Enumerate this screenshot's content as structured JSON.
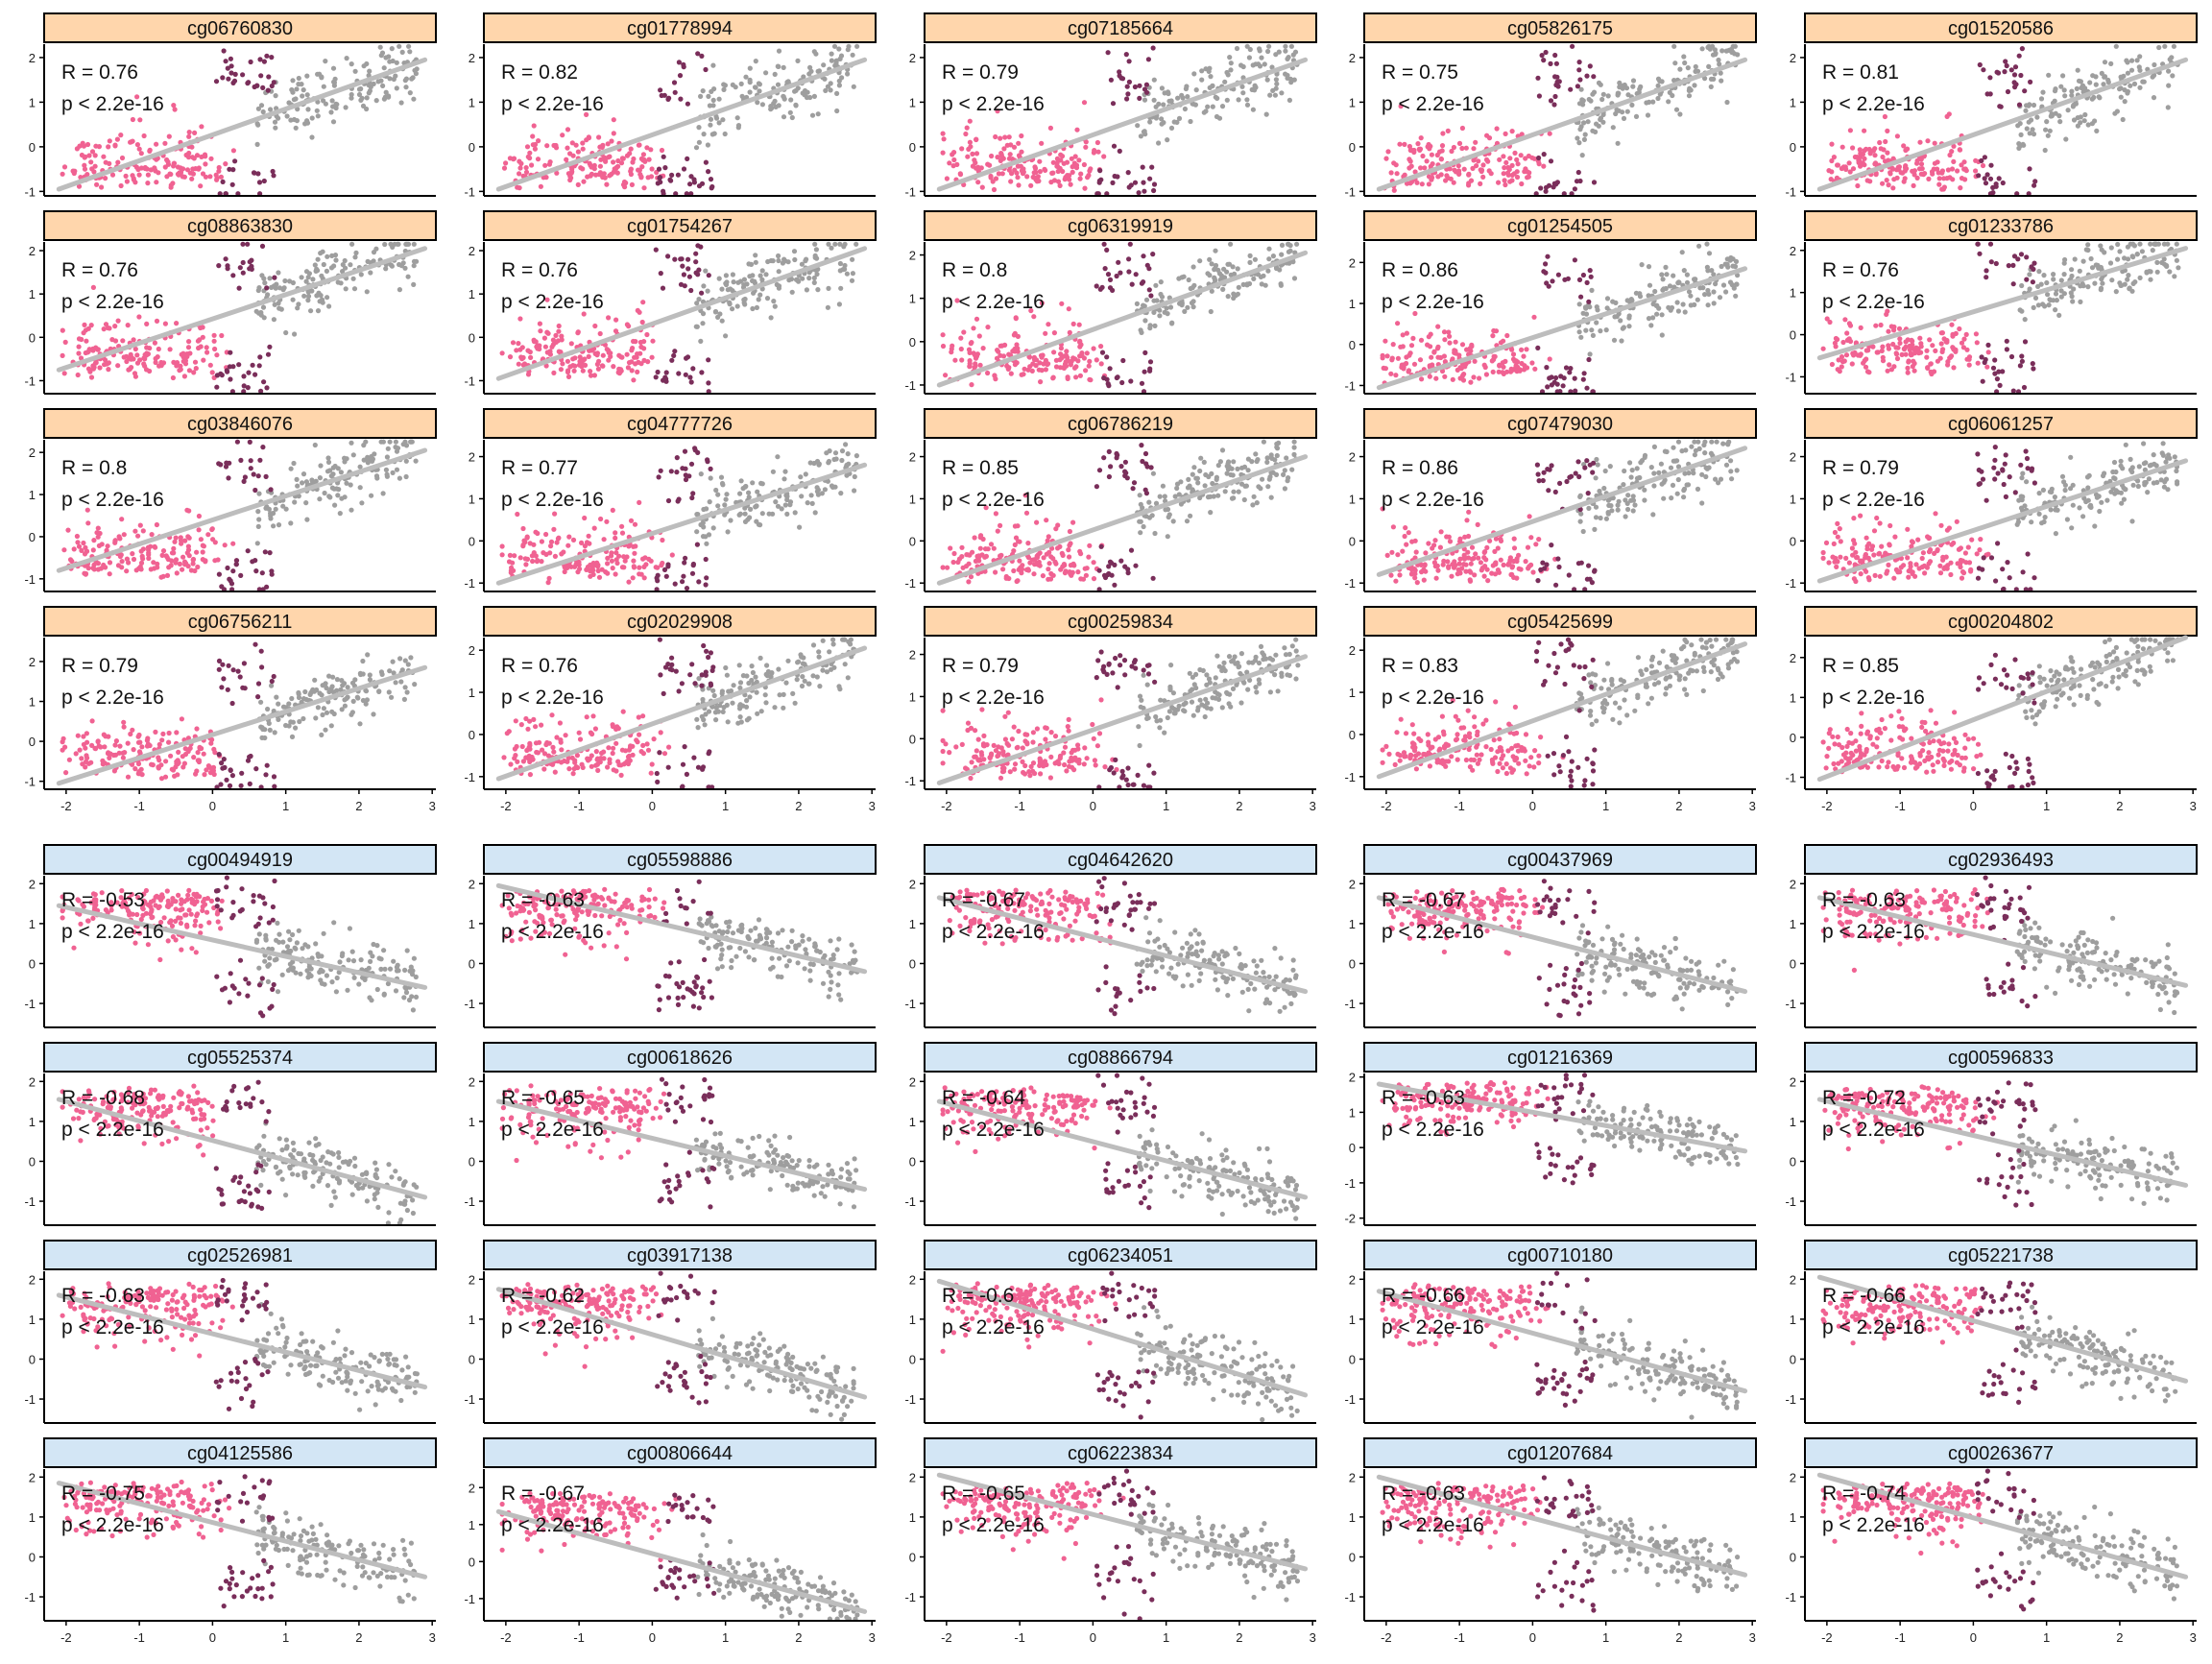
{
  "colors": {
    "positive_strip": "#FFD6AC",
    "negative_strip": "#D3E6F5",
    "group_pink": "#F06292",
    "group_purple": "#7A2E5A",
    "group_gray": "#9E9E9E",
    "fit_line": "#BDBDBD"
  },
  "x_tick_labels": [
    "-2",
    "-1",
    "0",
    "1",
    "2",
    "3"
  ],
  "chart_data": [
    {
      "type": "scatter",
      "title": "cg06760830",
      "group": "positive",
      "r_label": "R = 0.76",
      "p_label": "p < 2.2e-16",
      "ylim": [
        -1.1,
        2.3
      ],
      "yticks": [
        -1,
        0,
        1,
        2
      ],
      "xlim": [
        -2.3,
        3.05
      ],
      "fit": [
        [
          -2.1,
          -0.95
        ],
        [
          2.9,
          1.95
        ]
      ],
      "grid": false
    },
    {
      "type": "scatter",
      "title": "cg01778994",
      "group": "positive",
      "r_label": "R = 0.82",
      "p_label": "p < 2.2e-16",
      "ylim": [
        -1.1,
        2.3
      ],
      "yticks": [
        -1,
        0,
        1,
        2
      ],
      "xlim": [
        -2.3,
        3.05
      ],
      "fit": [
        [
          -2.1,
          -0.95
        ],
        [
          2.9,
          1.95
        ]
      ],
      "grid": false
    },
    {
      "type": "scatter",
      "title": "cg07185664",
      "group": "positive",
      "r_label": "R = 0.79",
      "p_label": "p < 2.2e-16",
      "ylim": [
        -1.1,
        2.3
      ],
      "yticks": [
        -1,
        0,
        1,
        2
      ],
      "xlim": [
        -2.3,
        3.05
      ],
      "fit": [
        [
          -2.1,
          -0.95
        ],
        [
          2.9,
          1.95
        ]
      ],
      "grid": false
    },
    {
      "type": "scatter",
      "title": "cg05826175",
      "group": "positive",
      "r_label": "R = 0.75",
      "p_label": "p < 2.2e-16",
      "ylim": [
        -1.1,
        2.3
      ],
      "yticks": [
        -1,
        0,
        1,
        2
      ],
      "xlim": [
        -2.3,
        3.05
      ],
      "fit": [
        [
          -2.1,
          -0.95
        ],
        [
          2.9,
          1.95
        ]
      ],
      "grid": false
    },
    {
      "type": "scatter",
      "title": "cg01520586",
      "group": "positive",
      "r_label": "R = 0.81",
      "p_label": "p < 2.2e-16",
      "ylim": [
        -1.1,
        2.3
      ],
      "yticks": [
        -1,
        0,
        1,
        2
      ],
      "xlim": [
        -2.3,
        3.05
      ],
      "fit": [
        [
          -2.1,
          -0.95
        ],
        [
          2.9,
          1.95
        ]
      ],
      "grid": false
    },
    {
      "type": "scatter",
      "title": "cg08863830",
      "group": "positive",
      "r_label": "R = 0.76",
      "p_label": "p < 2.2e-16",
      "ylim": [
        -1.3,
        2.2
      ],
      "yticks": [
        -1,
        0,
        1,
        2
      ],
      "xlim": [
        -2.3,
        3.05
      ],
      "fit": [
        [
          -2.1,
          -0.75
        ],
        [
          2.9,
          2.05
        ]
      ],
      "grid": false
    },
    {
      "type": "scatter",
      "title": "cg01754267",
      "group": "positive",
      "r_label": "R = 0.76",
      "p_label": "p < 2.2e-16",
      "ylim": [
        -1.3,
        2.2
      ],
      "yticks": [
        -1,
        0,
        1,
        2
      ],
      "xlim": [
        -2.3,
        3.05
      ],
      "fit": [
        [
          -2.1,
          -0.95
        ],
        [
          2.9,
          2.05
        ]
      ],
      "grid": false
    },
    {
      "type": "scatter",
      "title": "cg06319919",
      "group": "positive",
      "r_label": "R = 0.8",
      "p_label": "p < 2.2e-16",
      "ylim": [
        -1.2,
        2.3
      ],
      "yticks": [
        -1,
        0,
        1,
        2
      ],
      "xlim": [
        -2.3,
        3.05
      ],
      "fit": [
        [
          -2.1,
          -1.0
        ],
        [
          2.9,
          2.05
        ]
      ],
      "grid": false
    },
    {
      "type": "scatter",
      "title": "cg01254505",
      "group": "positive",
      "r_label": "R = 0.86",
      "p_label": "p < 2.2e-16",
      "ylim": [
        -1.2,
        2.5
      ],
      "yticks": [
        -1,
        0,
        1,
        2
      ],
      "xlim": [
        -2.3,
        3.05
      ],
      "fit": [
        [
          -2.1,
          -1.05
        ],
        [
          2.9,
          1.85
        ]
      ],
      "grid": false
    },
    {
      "type": "scatter",
      "title": "cg01233786",
      "group": "positive",
      "r_label": "R = 0.76",
      "p_label": "p < 2.2e-16",
      "ylim": [
        -1.4,
        2.2
      ],
      "yticks": [
        -1,
        0,
        1,
        2
      ],
      "xlim": [
        -2.3,
        3.05
      ],
      "fit": [
        [
          -2.1,
          -0.55
        ],
        [
          2.9,
          2.05
        ]
      ],
      "grid": false
    },
    {
      "type": "scatter",
      "title": "cg03846076",
      "group": "positive",
      "r_label": "R = 0.8",
      "p_label": "p < 2.2e-16",
      "ylim": [
        -1.3,
        2.3
      ],
      "yticks": [
        -1,
        0,
        1,
        2
      ],
      "xlim": [
        -2.3,
        3.05
      ],
      "fit": [
        [
          -2.1,
          -0.8
        ],
        [
          2.9,
          2.05
        ]
      ],
      "grid": false
    },
    {
      "type": "scatter",
      "title": "cg04777726",
      "group": "positive",
      "r_label": "R = 0.77",
      "p_label": "p < 2.2e-16",
      "ylim": [
        -1.2,
        2.4
      ],
      "yticks": [
        -1,
        0,
        1,
        2
      ],
      "xlim": [
        -2.3,
        3.05
      ],
      "fit": [
        [
          -2.1,
          -1.0
        ],
        [
          2.9,
          1.8
        ]
      ],
      "grid": false
    },
    {
      "type": "scatter",
      "title": "cg06786219",
      "group": "positive",
      "r_label": "R = 0.85",
      "p_label": "p < 2.2e-16",
      "ylim": [
        -1.2,
        2.4
      ],
      "yticks": [
        -1,
        0,
        1,
        2
      ],
      "xlim": [
        -2.3,
        3.05
      ],
      "fit": [
        [
          -2.1,
          -1.0
        ],
        [
          2.9,
          2.0
        ]
      ],
      "grid": false
    },
    {
      "type": "scatter",
      "title": "cg07479030",
      "group": "positive",
      "r_label": "R = 0.86",
      "p_label": "p < 2.2e-16",
      "ylim": [
        -1.2,
        2.4
      ],
      "yticks": [
        -1,
        0,
        1,
        2
      ],
      "xlim": [
        -2.3,
        3.05
      ],
      "fit": [
        [
          -2.1,
          -0.8
        ],
        [
          2.9,
          2.2
        ]
      ],
      "grid": false
    },
    {
      "type": "scatter",
      "title": "cg06061257",
      "group": "positive",
      "r_label": "R = 0.79",
      "p_label": "p < 2.2e-16",
      "ylim": [
        -1.2,
        2.4
      ],
      "yticks": [
        -1,
        0,
        1,
        2
      ],
      "xlim": [
        -2.3,
        3.05
      ],
      "fit": [
        [
          -2.1,
          -0.95
        ],
        [
          2.9,
          1.9
        ]
      ],
      "grid": false
    },
    {
      "type": "scatter",
      "title": "cg06756211",
      "group": "positive",
      "r_label": "R = 0.79",
      "p_label": "p < 2.2e-16",
      "ylim": [
        -1.2,
        2.6
      ],
      "yticks": [
        -1,
        0,
        1,
        2
      ],
      "xlim": [
        -2.3,
        3.05
      ],
      "fit": [
        [
          -2.1,
          -1.05
        ],
        [
          2.9,
          1.85
        ]
      ],
      "grid": false
    },
    {
      "type": "scatter",
      "title": "cg02029908",
      "group": "positive",
      "r_label": "R = 0.76",
      "p_label": "p < 2.2e-16",
      "ylim": [
        -1.3,
        2.3
      ],
      "yticks": [
        -1,
        0,
        1,
        2
      ],
      "xlim": [
        -2.3,
        3.05
      ],
      "fit": [
        [
          -2.1,
          -1.05
        ],
        [
          2.9,
          2.05
        ]
      ],
      "grid": false
    },
    {
      "type": "scatter",
      "title": "cg00259834",
      "group": "positive",
      "r_label": "R = 0.79",
      "p_label": "p < 2.2e-16",
      "ylim": [
        -1.2,
        2.4
      ],
      "yticks": [
        -1,
        0,
        1,
        2
      ],
      "xlim": [
        -2.3,
        3.05
      ],
      "fit": [
        [
          -2.1,
          -1.05
        ],
        [
          2.9,
          1.95
        ]
      ],
      "grid": false
    },
    {
      "type": "scatter",
      "title": "cg05425699",
      "group": "positive",
      "r_label": "R = 0.83",
      "p_label": "p < 2.2e-16",
      "ylim": [
        -1.3,
        2.3
      ],
      "yticks": [
        -1,
        0,
        1,
        2
      ],
      "xlim": [
        -2.3,
        3.05
      ],
      "fit": [
        [
          -2.1,
          -1.0
        ],
        [
          2.9,
          2.15
        ]
      ],
      "grid": false
    },
    {
      "type": "scatter",
      "title": "cg00204802",
      "group": "positive",
      "r_label": "R = 0.85",
      "p_label": "p < 2.2e-16",
      "ylim": [
        -1.3,
        2.5
      ],
      "yticks": [
        -1,
        0,
        1,
        2
      ],
      "xlim": [
        -2.3,
        3.05
      ],
      "fit": [
        [
          -2.1,
          -1.05
        ],
        [
          2.9,
          2.5
        ]
      ],
      "grid": false
    },
    {
      "type": "scatter",
      "title": "cg00494919",
      "group": "negative",
      "r_label": "R = -0.53",
      "p_label": "p < 2.2e-16",
      "ylim": [
        -1.6,
        2.2
      ],
      "yticks": [
        -1,
        0,
        1,
        2
      ],
      "xlim": [
        -2.3,
        3.05
      ],
      "fit": [
        [
          -2.1,
          1.45
        ],
        [
          2.9,
          -0.6
        ]
      ],
      "grid": false
    },
    {
      "type": "scatter",
      "title": "cg05598886",
      "group": "negative",
      "r_label": "R = -0.63",
      "p_label": "p < 2.2e-16",
      "ylim": [
        -1.6,
        2.2
      ],
      "yticks": [
        -1,
        0,
        1,
        2
      ],
      "xlim": [
        -2.3,
        3.05
      ],
      "fit": [
        [
          -2.1,
          1.95
        ],
        [
          2.9,
          -0.2
        ]
      ],
      "grid": false
    },
    {
      "type": "scatter",
      "title": "cg04642620",
      "group": "negative",
      "r_label": "R = -0.67",
      "p_label": "p < 2.2e-16",
      "ylim": [
        -1.6,
        2.2
      ],
      "yticks": [
        -1,
        0,
        1,
        2
      ],
      "xlim": [
        -2.3,
        3.05
      ],
      "fit": [
        [
          -2.1,
          1.65
        ],
        [
          2.9,
          -0.7
        ]
      ],
      "grid": false
    },
    {
      "type": "scatter",
      "title": "cg00437969",
      "group": "negative",
      "r_label": "R = -0.67",
      "p_label": "p < 2.2e-16",
      "ylim": [
        -1.6,
        2.2
      ],
      "yticks": [
        -1,
        0,
        1,
        2
      ],
      "xlim": [
        -2.3,
        3.05
      ],
      "fit": [
        [
          -2.1,
          1.65
        ],
        [
          2.9,
          -0.7
        ]
      ],
      "grid": false
    },
    {
      "type": "scatter",
      "title": "cg02936493",
      "group": "negative",
      "r_label": "R = -0.63",
      "p_label": "p < 2.2e-16",
      "ylim": [
        -1.6,
        2.2
      ],
      "yticks": [
        -1,
        0,
        1,
        2
      ],
      "xlim": [
        -2.3,
        3.05
      ],
      "fit": [
        [
          -2.1,
          1.65
        ],
        [
          2.9,
          -0.55
        ]
      ],
      "grid": false
    },
    {
      "type": "scatter",
      "title": "cg05525374",
      "group": "negative",
      "r_label": "R = -0.68",
      "p_label": "p < 2.2e-16",
      "ylim": [
        -1.6,
        2.2
      ],
      "yticks": [
        -1,
        0,
        1,
        2
      ],
      "xlim": [
        -2.3,
        3.05
      ],
      "fit": [
        [
          -2.1,
          1.55
        ],
        [
          2.9,
          -0.9
        ]
      ],
      "grid": false
    },
    {
      "type": "scatter",
      "title": "cg00618626",
      "group": "negative",
      "r_label": "R = -0.65",
      "p_label": "p < 2.2e-16",
      "ylim": [
        -1.6,
        2.2
      ],
      "yticks": [
        -1,
        0,
        1,
        2
      ],
      "xlim": [
        -2.3,
        3.05
      ],
      "fit": [
        [
          -2.1,
          1.5
        ],
        [
          2.9,
          -0.7
        ]
      ],
      "grid": false
    },
    {
      "type": "scatter",
      "title": "cg08866794",
      "group": "negative",
      "r_label": "R = -0.64",
      "p_label": "p < 2.2e-16",
      "ylim": [
        -1.6,
        2.2
      ],
      "yticks": [
        -1,
        0,
        1,
        2
      ],
      "xlim": [
        -2.3,
        3.05
      ],
      "fit": [
        [
          -2.1,
          1.5
        ],
        [
          2.9,
          -0.9
        ]
      ],
      "grid": false
    },
    {
      "type": "scatter",
      "title": "cg01216369",
      "group": "negative",
      "r_label": "R = -0.63",
      "p_label": "p < 2.2e-16",
      "ylim": [
        -2.2,
        2.1
      ],
      "yticks": [
        -2,
        -1,
        0,
        1,
        2
      ],
      "xlim": [
        -2.3,
        3.05
      ],
      "fit": [
        [
          -2.1,
          1.8
        ],
        [
          2.9,
          -0.1
        ]
      ],
      "grid": false
    },
    {
      "type": "scatter",
      "title": "cg00596833",
      "group": "negative",
      "r_label": "R = -0.72",
      "p_label": "p < 2.2e-16",
      "ylim": [
        -1.6,
        2.2
      ],
      "yticks": [
        -1,
        0,
        1,
        2
      ],
      "xlim": [
        -2.3,
        3.05
      ],
      "fit": [
        [
          -2.1,
          1.55
        ],
        [
          2.9,
          -0.6
        ]
      ],
      "grid": false
    },
    {
      "type": "scatter",
      "title": "cg02526981",
      "group": "negative",
      "r_label": "R = -0.63",
      "p_label": "p < 2.2e-16",
      "ylim": [
        -1.6,
        2.2
      ],
      "yticks": [
        -1,
        0,
        1,
        2
      ],
      "xlim": [
        -2.3,
        3.05
      ],
      "fit": [
        [
          -2.1,
          1.6
        ],
        [
          2.9,
          -0.7
        ]
      ],
      "grid": false
    },
    {
      "type": "scatter",
      "title": "cg03917138",
      "group": "negative",
      "r_label": "R = -0.62",
      "p_label": "p < 2.2e-16",
      "ylim": [
        -1.6,
        2.2
      ],
      "yticks": [
        -1,
        0,
        1,
        2
      ],
      "xlim": [
        -2.3,
        3.05
      ],
      "fit": [
        [
          -2.1,
          1.75
        ],
        [
          2.9,
          -0.95
        ]
      ],
      "grid": false
    },
    {
      "type": "scatter",
      "title": "cg06234051",
      "group": "negative",
      "r_label": "R = -0.6",
      "p_label": "p < 2.2e-16",
      "ylim": [
        -1.6,
        2.2
      ],
      "yticks": [
        -1,
        0,
        1,
        2
      ],
      "xlim": [
        -2.3,
        3.05
      ],
      "fit": [
        [
          -2.1,
          1.95
        ],
        [
          2.9,
          -0.9
        ]
      ],
      "grid": false
    },
    {
      "type": "scatter",
      "title": "cg00710180",
      "group": "negative",
      "r_label": "R = -0.66",
      "p_label": "p < 2.2e-16",
      "ylim": [
        -1.6,
        2.2
      ],
      "yticks": [
        -1,
        0,
        1,
        2
      ],
      "xlim": [
        -2.3,
        3.05
      ],
      "fit": [
        [
          -2.1,
          1.7
        ],
        [
          2.9,
          -0.8
        ]
      ],
      "grid": false
    },
    {
      "type": "scatter",
      "title": "cg05221738",
      "group": "negative",
      "r_label": "R = -0.66",
      "p_label": "p < 2.2e-16",
      "ylim": [
        -1.6,
        2.2
      ],
      "yticks": [
        -1,
        0,
        1,
        2
      ],
      "xlim": [
        -2.3,
        3.05
      ],
      "fit": [
        [
          -2.1,
          2.05
        ],
        [
          2.9,
          -0.55
        ]
      ],
      "grid": false
    },
    {
      "type": "scatter",
      "title": "cg04125586",
      "group": "negative",
      "r_label": "R = -0.75",
      "p_label": "p < 2.2e-16",
      "ylim": [
        -1.6,
        2.2
      ],
      "yticks": [
        -1,
        0,
        1,
        2
      ],
      "xlim": [
        -2.3,
        3.05
      ],
      "fit": [
        [
          -2.1,
          1.85
        ],
        [
          2.9,
          -0.5
        ]
      ],
      "grid": false
    },
    {
      "type": "scatter",
      "title": "cg00806644",
      "group": "negative",
      "r_label": "R = -0.67",
      "p_label": "p < 2.2e-16",
      "ylim": [
        -1.6,
        2.5
      ],
      "yticks": [
        -1,
        0,
        1,
        2
      ],
      "xlim": [
        -2.3,
        3.05
      ],
      "fit": [
        [
          -2.1,
          1.35
        ],
        [
          2.9,
          -1.35
        ]
      ],
      "grid": false
    },
    {
      "type": "scatter",
      "title": "cg06223834",
      "group": "negative",
      "r_label": "R = -0.65",
      "p_label": "p < 2.2e-16",
      "ylim": [
        -1.6,
        2.2
      ],
      "yticks": [
        -1,
        0,
        1,
        2
      ],
      "xlim": [
        -2.3,
        3.05
      ],
      "fit": [
        [
          -2.1,
          2.05
        ],
        [
          2.9,
          -0.3
        ]
      ],
      "grid": false
    },
    {
      "type": "scatter",
      "title": "cg01207684",
      "group": "negative",
      "r_label": "R = -0.63",
      "p_label": "p < 2.2e-16",
      "ylim": [
        -1.6,
        2.2
      ],
      "yticks": [
        -1,
        0,
        1,
        2
      ],
      "xlim": [
        -2.3,
        3.05
      ],
      "fit": [
        [
          -2.1,
          2.0
        ],
        [
          2.9,
          -0.45
        ]
      ],
      "grid": false
    },
    {
      "type": "scatter",
      "title": "cg00263677",
      "group": "negative",
      "r_label": "R = -0.74",
      "p_label": "p < 2.2e-16",
      "ylim": [
        -1.6,
        2.2
      ],
      "yticks": [
        -1,
        0,
        1,
        2
      ],
      "xlim": [
        -2.3,
        3.05
      ],
      "fit": [
        [
          -2.1,
          2.05
        ],
        [
          2.9,
          -0.5
        ]
      ],
      "grid": false
    }
  ]
}
